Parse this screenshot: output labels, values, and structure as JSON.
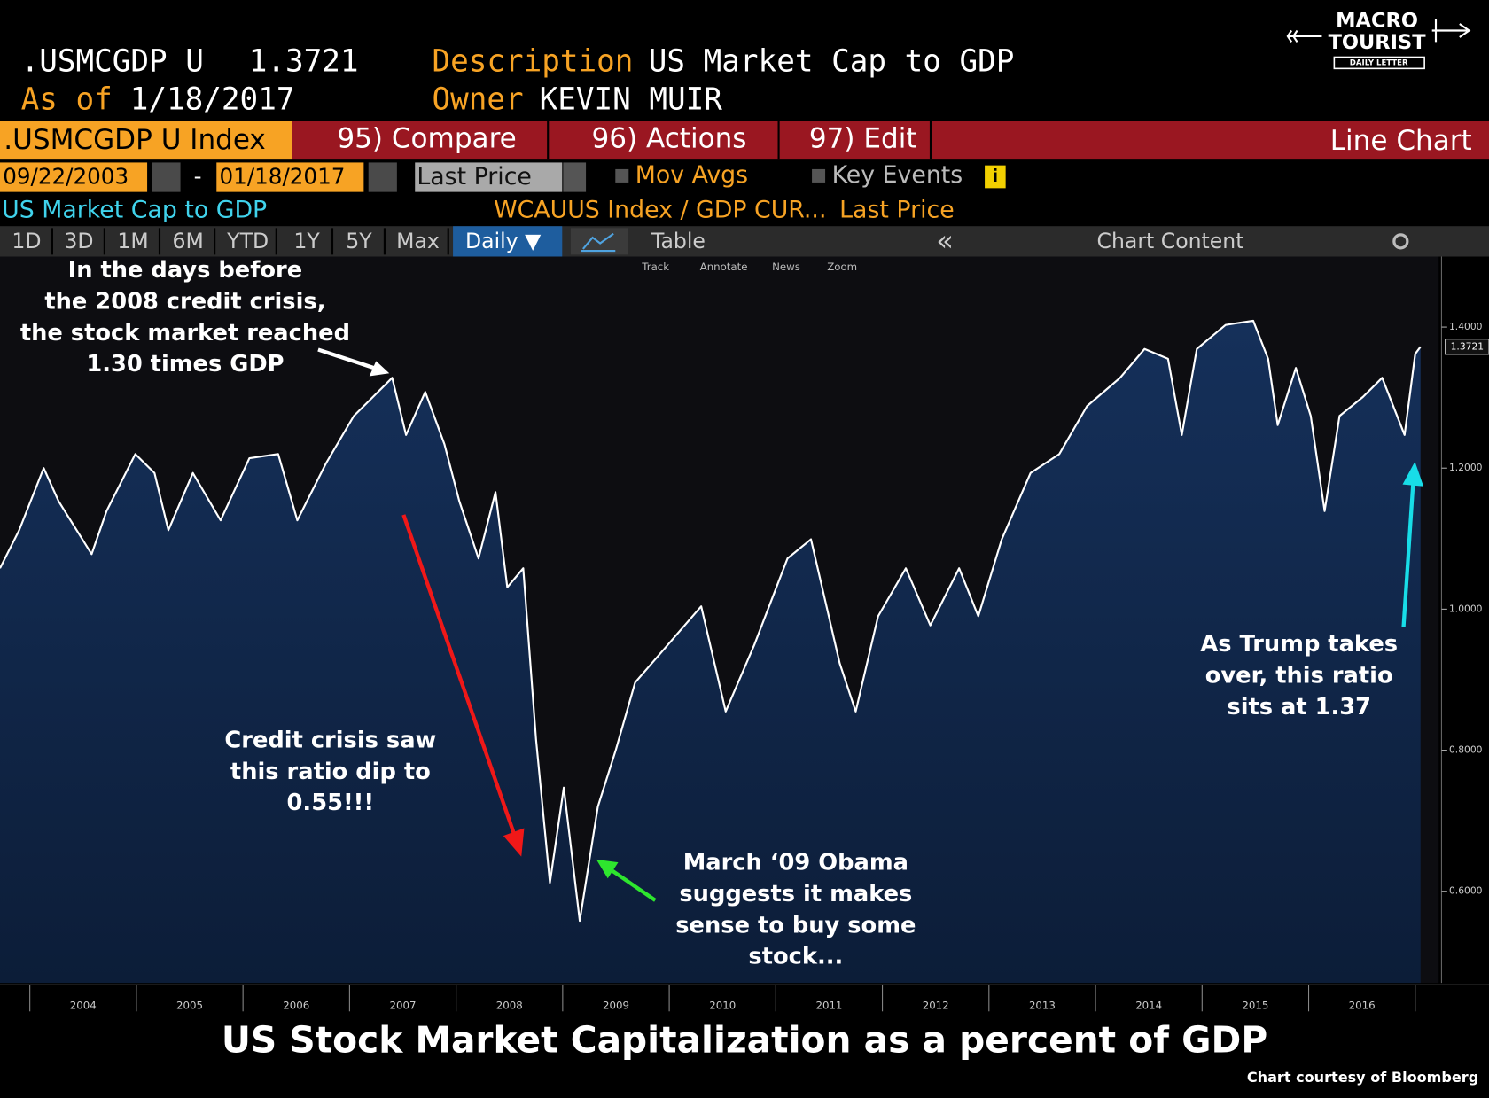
{
  "header": {
    "ticker": ".USMCGDP U",
    "last_price": "1.3721",
    "description_label": "Description",
    "description": "US Market Cap to GDP",
    "as_of_label": "As of",
    "as_of": "1/18/2017",
    "owner_label": "Owner",
    "owner": "KEVIN MUIR"
  },
  "logo": {
    "line1": "MACRO",
    "line2": "TOURIST",
    "tagline": "DAILY LETTER"
  },
  "toolbar": {
    "security": ".USMCGDP U Index",
    "compare": "95) Compare",
    "actions": "96) Actions",
    "edit": "97) Edit",
    "chart_type": "Line Chart"
  },
  "controls": {
    "start_date": "09/22/2003",
    "separator": "-",
    "end_date": "01/18/2017",
    "field": "Last Price",
    "mov_avgs": "Mov Avgs",
    "key_events": "Key Events",
    "info": "i"
  },
  "legend_row": {
    "name": "US Market Cap to GDP",
    "expression": "WCAUUS Index / GDP CUR...",
    "field": "Last Price"
  },
  "tabs": [
    "1D",
    "3D",
    "1M",
    "6M",
    "YTD",
    "1Y",
    "5Y",
    "Max"
  ],
  "frequency": "Daily ▼",
  "table": "Table",
  "collapse": "«",
  "chart_content": "Chart Content",
  "mini_toolbar": [
    "Track",
    "Annotate",
    "News",
    "Zoom"
  ],
  "chart_data": {
    "type": "area",
    "title": "US Stock Market Capitalization as a percent of GDP",
    "credit": "Chart courtesy of Bloomberg",
    "series": [
      {
        "name": "US Market Cap to GDP",
        "color": "#ffffff",
        "fill": "#15305a",
        "x": [
          2003.72,
          2003.9,
          2004.13,
          2004.27,
          2004.58,
          2004.72,
          2004.99,
          2005.17,
          2005.3,
          2005.53,
          2005.79,
          2006.06,
          2006.33,
          2006.51,
          2006.78,
          2007.04,
          2007.22,
          2007.4,
          2007.53,
          2007.71,
          2007.89,
          2008.03,
          2008.21,
          2008.37,
          2008.48,
          2008.63,
          2008.75,
          2008.88,
          2009.01,
          2009.16,
          2009.33,
          2009.5,
          2009.68,
          2009.99,
          2010.3,
          2010.53,
          2010.8,
          2011.11,
          2011.33,
          2011.6,
          2011.75,
          2011.96,
          2012.22,
          2012.45,
          2012.72,
          2012.9,
          2013.12,
          2013.39,
          2013.66,
          2013.92,
          2014.23,
          2014.46,
          2014.68,
          2014.81,
          2014.95,
          2015.22,
          2015.48,
          2015.62,
          2015.71,
          2015.88,
          2016.02,
          2016.15,
          2016.29,
          2016.51,
          2016.69,
          2016.9,
          2017.0,
          2017.05
        ],
        "values": [
          1.058,
          1.112,
          1.2,
          1.153,
          1.078,
          1.139,
          1.22,
          1.193,
          1.112,
          1.193,
          1.126,
          1.214,
          1.22,
          1.126,
          1.207,
          1.274,
          1.301,
          1.328,
          1.247,
          1.308,
          1.234,
          1.153,
          1.072,
          1.166,
          1.031,
          1.058,
          0.815,
          0.612,
          0.747,
          0.558,
          0.72,
          0.801,
          0.896,
          0.95,
          1.004,
          0.855,
          0.95,
          1.072,
          1.099,
          0.923,
          0.855,
          0.99,
          1.058,
          0.977,
          1.058,
          0.99,
          1.099,
          1.193,
          1.22,
          1.288,
          1.328,
          1.369,
          1.355,
          1.247,
          1.369,
          1.403,
          1.409,
          1.355,
          1.261,
          1.342,
          1.274,
          1.139,
          1.274,
          1.301,
          1.328,
          1.247,
          1.362,
          1.3721
        ]
      }
    ],
    "xlim": [
      2003.72,
      2017.22
    ],
    "xticks": [
      {
        "value": 2004,
        "label": "2004"
      },
      {
        "value": 2005,
        "label": "2005"
      },
      {
        "value": 2006,
        "label": "2006"
      },
      {
        "value": 2007,
        "label": "2007"
      },
      {
        "value": 2008,
        "label": "2008"
      },
      {
        "value": 2009,
        "label": "2009"
      },
      {
        "value": 2010,
        "label": "2010"
      },
      {
        "value": 2011,
        "label": "2011"
      },
      {
        "value": 2012,
        "label": "2012"
      },
      {
        "value": 2013,
        "label": "2013"
      },
      {
        "value": 2014,
        "label": "2014"
      },
      {
        "value": 2015,
        "label": "2015"
      },
      {
        "value": 2016,
        "label": "2016"
      },
      {
        "value": 2017,
        "label": null
      }
    ],
    "ylim": [
      0.47,
      1.5
    ],
    "yticks": [
      {
        "value": 0.6,
        "label": "0.6000"
      },
      {
        "value": 0.8,
        "label": "0.8000"
      },
      {
        "value": 1.0,
        "label": "1.0000"
      },
      {
        "value": 1.2,
        "label": "1.2000"
      },
      {
        "value": 1.4,
        "label": "1.4000"
      }
    ],
    "annotations": [
      {
        "lines": [
          "In the days before",
          "the 2008 credit crisis,",
          "the stock market reached",
          "1.30 times GDP"
        ]
      },
      {
        "lines": [
          "Credit crisis saw",
          "this ratio dip to",
          "0.55!!!"
        ]
      },
      {
        "lines": [
          "March ‘09 Obama",
          "suggests it makes",
          "sense to buy some",
          "stock..."
        ]
      },
      {
        "lines": [
          "As Trump takes",
          "over, this ratio",
          "sits at 1.37"
        ]
      }
    ]
  }
}
